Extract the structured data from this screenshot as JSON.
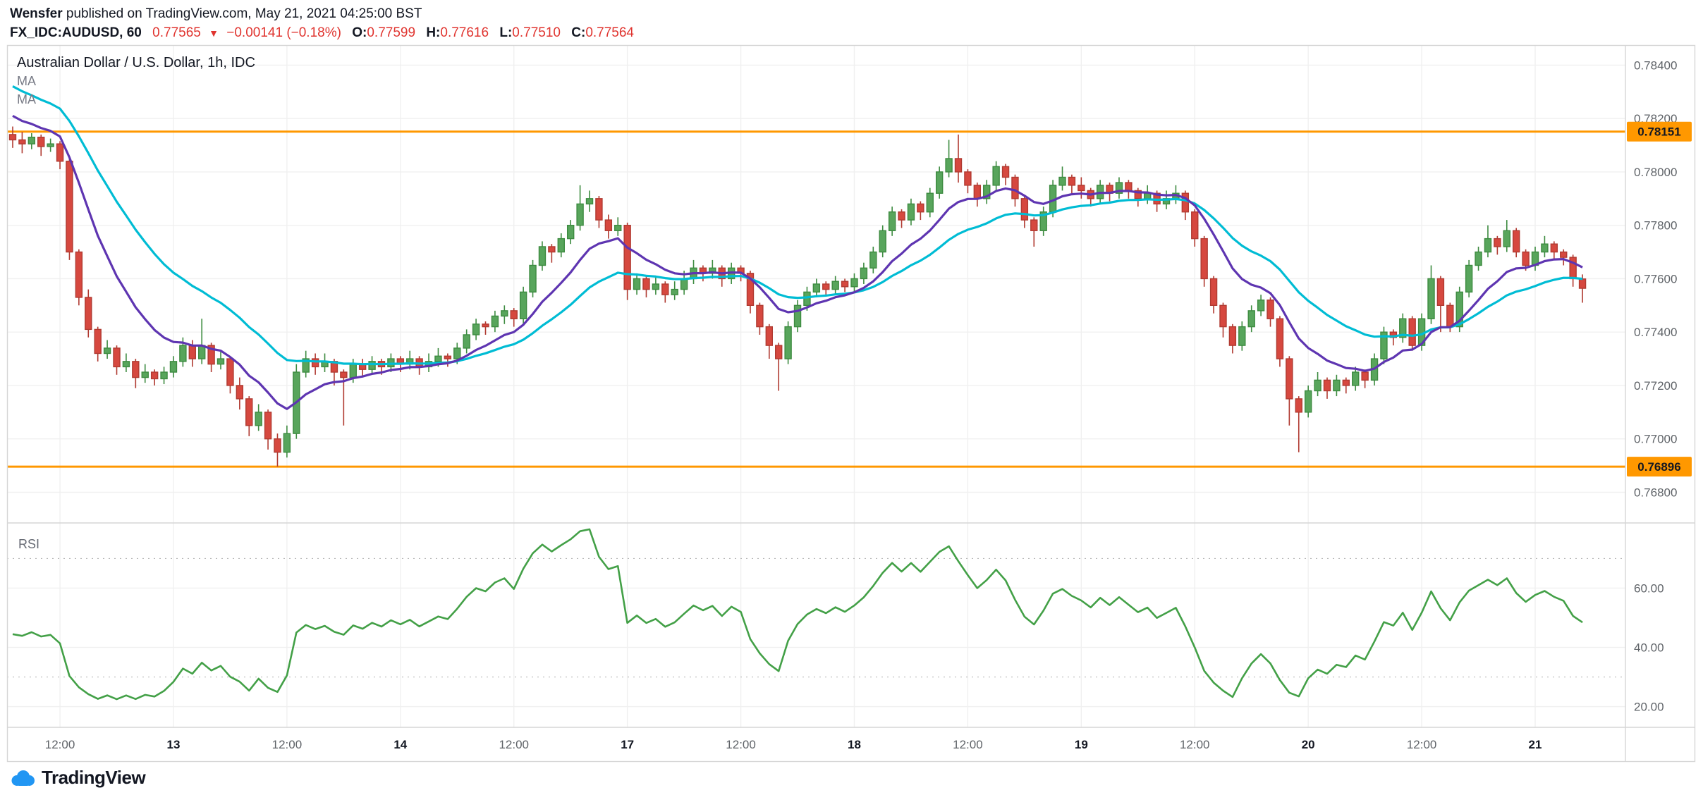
{
  "header": {
    "byline_author": "Wensfer",
    "byline_rest": " published on TradingView.com, May 21, 2021 04:25:00 BST",
    "symbol": "FX_IDC:AUDUSD, 60",
    "last_price": "0.77565",
    "change_arrow": "▼",
    "change": "−0.00141 (−0.18%)",
    "ohlc": [
      {
        "label": "O:",
        "value": "0.77599"
      },
      {
        "label": "H:",
        "value": "0.77616"
      },
      {
        "label": "L:",
        "value": "0.77510"
      },
      {
        "label": "C:",
        "value": "0.77564"
      }
    ]
  },
  "legend": {
    "title": "Australian Dollar / U.S. Dollar, 1h, IDC",
    "ma1": "MA",
    "ma2": "MA"
  },
  "rsi_title": "RSI",
  "logo_text": "TradingView",
  "colors": {
    "up": "#58a55c",
    "up_border": "#3d8b40",
    "down": "#d6483f",
    "down_border": "#b03a31",
    "ma_fast": "#5e35b1",
    "ma_slow": "#00bcd4",
    "rsi": "#43a047",
    "level": "#ff9800",
    "grid": "#f0f0f0",
    "band_dash": "#b7b7b7",
    "axis_text": "#5f6368",
    "border": "#d6d6d6",
    "negative": "#e0342f",
    "text": "#131722",
    "logo_blue": "#2196f3"
  },
  "chart_data": {
    "type": "candlestick",
    "title": "Australian Dollar / U.S. Dollar, 1h, IDC",
    "symbol": "AUDUSD",
    "interval": "1h",
    "price_axis": {
      "min": 0.76685,
      "max": 0.78475,
      "ticks": [
        0.784,
        0.782,
        0.78,
        0.778,
        0.776,
        0.774,
        0.772,
        0.77,
        0.768
      ]
    },
    "levels": [
      {
        "value": 0.78151,
        "label": "0.78151"
      },
      {
        "value": 0.76896,
        "label": "0.76896"
      }
    ],
    "time_labels": [
      {
        "index": 5,
        "text": "12:00",
        "major": false
      },
      {
        "index": 17,
        "text": "13",
        "major": true
      },
      {
        "index": 29,
        "text": "12:00",
        "major": false
      },
      {
        "index": 41,
        "text": "14",
        "major": true
      },
      {
        "index": 53,
        "text": "12:00",
        "major": false
      },
      {
        "index": 65,
        "text": "17",
        "major": true
      },
      {
        "index": 77,
        "text": "12:00",
        "major": false
      },
      {
        "index": 89,
        "text": "18",
        "major": true
      },
      {
        "index": 101,
        "text": "12:00",
        "major": false
      },
      {
        "index": 113,
        "text": "19",
        "major": true
      },
      {
        "index": 125,
        "text": "12:00",
        "major": false
      },
      {
        "index": 137,
        "text": "20",
        "major": true
      },
      {
        "index": 149,
        "text": "12:00",
        "major": false
      },
      {
        "index": 161,
        "text": "21",
        "major": true
      }
    ],
    "indicators": {
      "ma_fast": {
        "label": "MA",
        "length": 10,
        "seed": 0.7823
      },
      "ma_slow": {
        "label": "MA",
        "length": 22,
        "seed": 0.7834
      },
      "rsi": {
        "label": "RSI",
        "length": 14,
        "seed_gain": 0.0004,
        "seed_loss": 0.0005,
        "bands": [
          70,
          30
        ],
        "ticks": [
          60,
          40,
          20
        ],
        "min": 13,
        "max": 82
      }
    },
    "candles": [
      [
        0.7814,
        0.7817,
        0.7809,
        0.7812
      ],
      [
        0.7812,
        0.7815,
        0.7807,
        0.78105
      ],
      [
        0.78105,
        0.78145,
        0.78085,
        0.7813
      ],
      [
        0.7813,
        0.7814,
        0.7806,
        0.78095
      ],
      [
        0.78095,
        0.78125,
        0.78075,
        0.78105
      ],
      [
        0.78105,
        0.78115,
        0.7801,
        0.7804
      ],
      [
        0.7804,
        0.7805,
        0.7767,
        0.777
      ],
      [
        0.777,
        0.7771,
        0.775,
        0.7753
      ],
      [
        0.7753,
        0.7756,
        0.7738,
        0.7741
      ],
      [
        0.7741,
        0.7742,
        0.7729,
        0.7732
      ],
      [
        0.7732,
        0.7737,
        0.773,
        0.7734
      ],
      [
        0.7734,
        0.7735,
        0.7724,
        0.7727
      ],
      [
        0.7727,
        0.7732,
        0.7725,
        0.7729
      ],
      [
        0.7729,
        0.773,
        0.7719,
        0.7723
      ],
      [
        0.7723,
        0.7728,
        0.7721,
        0.7725
      ],
      [
        0.7725,
        0.7726,
        0.772,
        0.77225
      ],
      [
        0.77225,
        0.7727,
        0.77205,
        0.7725
      ],
      [
        0.7725,
        0.7731,
        0.7723,
        0.7729
      ],
      [
        0.7729,
        0.7738,
        0.7727,
        0.7735
      ],
      [
        0.7735,
        0.7737,
        0.7727,
        0.773
      ],
      [
        0.773,
        0.7745,
        0.7728,
        0.7735
      ],
      [
        0.7735,
        0.7736,
        0.7725,
        0.7728
      ],
      [
        0.7728,
        0.7733,
        0.7726,
        0.773
      ],
      [
        0.773,
        0.7731,
        0.7717,
        0.772
      ],
      [
        0.772,
        0.7723,
        0.7711,
        0.7715
      ],
      [
        0.7715,
        0.7716,
        0.7701,
        0.7705
      ],
      [
        0.7705,
        0.7713,
        0.7703,
        0.771
      ],
      [
        0.771,
        0.7711,
        0.7696,
        0.77
      ],
      [
        0.77,
        0.7702,
        0.76896,
        0.7695
      ],
      [
        0.7695,
        0.7705,
        0.7693,
        0.7702
      ],
      [
        0.7702,
        0.7728,
        0.77,
        0.7725
      ],
      [
        0.7725,
        0.7733,
        0.7723,
        0.773
      ],
      [
        0.773,
        0.7732,
        0.7724,
        0.7727
      ],
      [
        0.7727,
        0.7732,
        0.7725,
        0.7729
      ],
      [
        0.7729,
        0.773,
        0.772,
        0.7725
      ],
      [
        0.7725,
        0.7726,
        0.7705,
        0.7723
      ],
      [
        0.7723,
        0.773,
        0.7721,
        0.7728
      ],
      [
        0.7728,
        0.773,
        0.7723,
        0.7726
      ],
      [
        0.7726,
        0.7731,
        0.7724,
        0.7729
      ],
      [
        0.7729,
        0.773,
        0.7724,
        0.7727
      ],
      [
        0.7727,
        0.7732,
        0.7725,
        0.773
      ],
      [
        0.773,
        0.7731,
        0.7725,
        0.7728
      ],
      [
        0.7728,
        0.7733,
        0.7726,
        0.773
      ],
      [
        0.773,
        0.7731,
        0.7724,
        0.7727
      ],
      [
        0.7727,
        0.7732,
        0.7725,
        0.7729
      ],
      [
        0.7729,
        0.7734,
        0.7727,
        0.7731
      ],
      [
        0.7731,
        0.7732,
        0.7727,
        0.773
      ],
      [
        0.773,
        0.7736,
        0.7728,
        0.7734
      ],
      [
        0.7734,
        0.7741,
        0.7732,
        0.7739
      ],
      [
        0.7739,
        0.7745,
        0.7737,
        0.7743
      ],
      [
        0.7743,
        0.7744,
        0.7739,
        0.7742
      ],
      [
        0.7742,
        0.7748,
        0.774,
        0.7746
      ],
      [
        0.7746,
        0.775,
        0.7743,
        0.7748
      ],
      [
        0.7748,
        0.7749,
        0.7742,
        0.7745
      ],
      [
        0.7745,
        0.7757,
        0.7743,
        0.7755
      ],
      [
        0.7755,
        0.7767,
        0.7753,
        0.7765
      ],
      [
        0.7765,
        0.7774,
        0.7763,
        0.7772
      ],
      [
        0.7772,
        0.7773,
        0.7766,
        0.777
      ],
      [
        0.777,
        0.7777,
        0.7768,
        0.7775
      ],
      [
        0.7775,
        0.7782,
        0.7773,
        0.778
      ],
      [
        0.778,
        0.7795,
        0.7778,
        0.7788
      ],
      [
        0.7788,
        0.7793,
        0.7785,
        0.779
      ],
      [
        0.779,
        0.7791,
        0.7779,
        0.7782
      ],
      [
        0.7782,
        0.7784,
        0.7775,
        0.7778
      ],
      [
        0.7778,
        0.7783,
        0.7776,
        0.778
      ],
      [
        0.778,
        0.7781,
        0.7752,
        0.7756
      ],
      [
        0.7756,
        0.7762,
        0.7754,
        0.776
      ],
      [
        0.776,
        0.7761,
        0.7753,
        0.7756
      ],
      [
        0.7756,
        0.7761,
        0.7754,
        0.7758
      ],
      [
        0.7758,
        0.7759,
        0.7751,
        0.7754
      ],
      [
        0.7754,
        0.7759,
        0.7752,
        0.7756
      ],
      [
        0.7756,
        0.7763,
        0.7754,
        0.776
      ],
      [
        0.776,
        0.7767,
        0.7758,
        0.7764
      ],
      [
        0.7764,
        0.7765,
        0.7759,
        0.7762
      ],
      [
        0.7762,
        0.7767,
        0.776,
        0.7764
      ],
      [
        0.7764,
        0.7765,
        0.7757,
        0.776
      ],
      [
        0.776,
        0.7766,
        0.7758,
        0.7764
      ],
      [
        0.7764,
        0.7765,
        0.7759,
        0.7762
      ],
      [
        0.7762,
        0.7763,
        0.7747,
        0.775
      ],
      [
        0.775,
        0.7751,
        0.7739,
        0.7742
      ],
      [
        0.7742,
        0.7743,
        0.773,
        0.7735
      ],
      [
        0.7735,
        0.7736,
        0.7718,
        0.773
      ],
      [
        0.773,
        0.7744,
        0.7728,
        0.7742
      ],
      [
        0.7742,
        0.7752,
        0.774,
        0.775
      ],
      [
        0.775,
        0.7757,
        0.7748,
        0.7755
      ],
      [
        0.7755,
        0.776,
        0.7753,
        0.7758
      ],
      [
        0.7758,
        0.7759,
        0.7754,
        0.7756
      ],
      [
        0.7756,
        0.7761,
        0.7754,
        0.7759
      ],
      [
        0.7759,
        0.776,
        0.7755,
        0.7757
      ],
      [
        0.7757,
        0.7762,
        0.7755,
        0.776
      ],
      [
        0.776,
        0.7766,
        0.7758,
        0.7764
      ],
      [
        0.7764,
        0.7772,
        0.7762,
        0.777
      ],
      [
        0.777,
        0.778,
        0.7768,
        0.7778
      ],
      [
        0.7778,
        0.7787,
        0.7776,
        0.7785
      ],
      [
        0.7785,
        0.7786,
        0.7779,
        0.7782
      ],
      [
        0.7782,
        0.779,
        0.778,
        0.7788
      ],
      [
        0.7788,
        0.7789,
        0.7782,
        0.7785
      ],
      [
        0.7785,
        0.7794,
        0.7783,
        0.7792
      ],
      [
        0.7792,
        0.7802,
        0.779,
        0.78
      ],
      [
        0.78,
        0.7812,
        0.7798,
        0.7805
      ],
      [
        0.7805,
        0.7814,
        0.7796,
        0.78
      ],
      [
        0.78,
        0.7801,
        0.7792,
        0.7795
      ],
      [
        0.7795,
        0.7796,
        0.7787,
        0.779
      ],
      [
        0.779,
        0.7797,
        0.7788,
        0.7795
      ],
      [
        0.7795,
        0.7804,
        0.7793,
        0.7802
      ],
      [
        0.7802,
        0.7803,
        0.7795,
        0.7798
      ],
      [
        0.7798,
        0.7799,
        0.7787,
        0.779
      ],
      [
        0.779,
        0.7791,
        0.7779,
        0.7782
      ],
      [
        0.7782,
        0.7783,
        0.7772,
        0.7778
      ],
      [
        0.7778,
        0.7787,
        0.7776,
        0.7785
      ],
      [
        0.7785,
        0.7797,
        0.7783,
        0.7795
      ],
      [
        0.7795,
        0.7802,
        0.7793,
        0.7798
      ],
      [
        0.7798,
        0.7799,
        0.7792,
        0.7795
      ],
      [
        0.7795,
        0.7798,
        0.779,
        0.7793
      ],
      [
        0.7793,
        0.7794,
        0.7787,
        0.779
      ],
      [
        0.779,
        0.7797,
        0.7788,
        0.7795
      ],
      [
        0.7795,
        0.7796,
        0.7789,
        0.7792
      ],
      [
        0.7792,
        0.7798,
        0.779,
        0.7796
      ],
      [
        0.7796,
        0.7797,
        0.779,
        0.7793
      ],
      [
        0.7793,
        0.7794,
        0.7787,
        0.779
      ],
      [
        0.779,
        0.7795,
        0.7788,
        0.7792
      ],
      [
        0.7792,
        0.7793,
        0.7785,
        0.7788
      ],
      [
        0.7788,
        0.7793,
        0.7786,
        0.779
      ],
      [
        0.779,
        0.7795,
        0.7788,
        0.7792
      ],
      [
        0.7792,
        0.7793,
        0.7782,
        0.7785
      ],
      [
        0.7785,
        0.7786,
        0.7772,
        0.7775
      ],
      [
        0.7775,
        0.7776,
        0.7757,
        0.776
      ],
      [
        0.776,
        0.7761,
        0.7747,
        0.775
      ],
      [
        0.775,
        0.7751,
        0.7738,
        0.7742
      ],
      [
        0.7742,
        0.7743,
        0.7732,
        0.7735
      ],
      [
        0.7735,
        0.7744,
        0.7733,
        0.7742
      ],
      [
        0.7742,
        0.775,
        0.774,
        0.7748
      ],
      [
        0.7748,
        0.7754,
        0.7746,
        0.7752
      ],
      [
        0.7752,
        0.7753,
        0.7742,
        0.7745
      ],
      [
        0.7745,
        0.7746,
        0.7727,
        0.773
      ],
      [
        0.773,
        0.7731,
        0.7705,
        0.7715
      ],
      [
        0.7715,
        0.7716,
        0.7695,
        0.771
      ],
      [
        0.771,
        0.772,
        0.7708,
        0.7718
      ],
      [
        0.7718,
        0.7725,
        0.7716,
        0.7722
      ],
      [
        0.7722,
        0.7723,
        0.7715,
        0.7718
      ],
      [
        0.7718,
        0.7724,
        0.7716,
        0.7722
      ],
      [
        0.7722,
        0.7723,
        0.7717,
        0.772
      ],
      [
        0.772,
        0.7727,
        0.7718,
        0.7725
      ],
      [
        0.7725,
        0.7726,
        0.7719,
        0.7722
      ],
      [
        0.7722,
        0.7732,
        0.772,
        0.773
      ],
      [
        0.773,
        0.7742,
        0.7728,
        0.774
      ],
      [
        0.774,
        0.7741,
        0.7735,
        0.7738
      ],
      [
        0.7738,
        0.7747,
        0.7736,
        0.7745
      ],
      [
        0.7745,
        0.7746,
        0.7733,
        0.7735
      ],
      [
        0.7735,
        0.7747,
        0.7733,
        0.7745
      ],
      [
        0.7745,
        0.7765,
        0.7743,
        0.776
      ],
      [
        0.776,
        0.7761,
        0.774,
        0.775
      ],
      [
        0.775,
        0.7751,
        0.774,
        0.7742
      ],
      [
        0.7742,
        0.7757,
        0.774,
        0.7755
      ],
      [
        0.7755,
        0.7767,
        0.7753,
        0.7765
      ],
      [
        0.7765,
        0.7772,
        0.7763,
        0.777
      ],
      [
        0.777,
        0.778,
        0.7768,
        0.7775
      ],
      [
        0.7775,
        0.7776,
        0.7769,
        0.7772
      ],
      [
        0.7772,
        0.7782,
        0.777,
        0.7778
      ],
      [
        0.7778,
        0.7779,
        0.7768,
        0.777
      ],
      [
        0.777,
        0.7771,
        0.7763,
        0.7765
      ],
      [
        0.7765,
        0.7772,
        0.7763,
        0.777
      ],
      [
        0.777,
        0.7776,
        0.7768,
        0.7773
      ],
      [
        0.7773,
        0.7774,
        0.7767,
        0.777
      ],
      [
        0.777,
        0.7771,
        0.7765,
        0.7768
      ],
      [
        0.7768,
        0.7769,
        0.7757,
        0.776
      ],
      [
        0.77599,
        0.77616,
        0.7751,
        0.77564
      ]
    ]
  }
}
